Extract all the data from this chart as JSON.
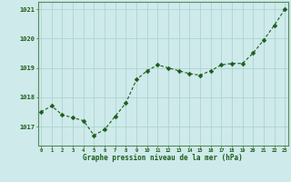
{
  "x": [
    0,
    1,
    2,
    3,
    4,
    5,
    6,
    7,
    8,
    9,
    10,
    11,
    12,
    13,
    14,
    15,
    16,
    17,
    18,
    19,
    20,
    21,
    22,
    23
  ],
  "y": [
    1017.5,
    1017.7,
    1017.4,
    1017.3,
    1017.2,
    1016.7,
    1016.9,
    1017.35,
    1017.8,
    1018.6,
    1018.9,
    1019.1,
    1019.0,
    1018.9,
    1018.8,
    1018.75,
    1018.9,
    1019.1,
    1019.15,
    1019.15,
    1019.5,
    1019.95,
    1020.45,
    1021.0
  ],
  "bg_color": "#ceeaea",
  "line_color": "#1a5c1a",
  "marker_color": "#1a5c1a",
  "grid_color": "#aacece",
  "axis_label_color": "#1a5c1a",
  "tick_color": "#1a5c1a",
  "ylabel_ticks": [
    1017,
    1018,
    1019,
    1020,
    1021
  ],
  "ylim": [
    1016.35,
    1021.25
  ],
  "xlim": [
    -0.3,
    23.3
  ],
  "xlabel": "Graphe pression niveau de la mer (hPa)",
  "spine_color": "#5a8a5a"
}
